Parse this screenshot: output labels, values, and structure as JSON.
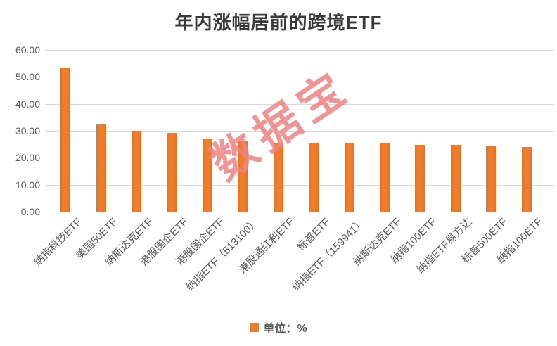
{
  "title": "年内涨幅居前的跨境ETF",
  "watermark": "数据宝",
  "legend": {
    "label": "单位：%"
  },
  "colors": {
    "bar": "#ED7D31",
    "bar_edge": "#E4721D",
    "gridline": "#D9D9D9",
    "axis_line": "#BFBFBF",
    "axis_text": "#595959",
    "title_text": "#3A3A3A",
    "watermark": "#EE8383"
  },
  "y_axis": {
    "tick_labels": [
      "60.00",
      "50.00",
      "40.00",
      "30.00",
      "20.00",
      "10.00",
      "0.00"
    ],
    "min": 0,
    "max": 60
  },
  "chart_data": {
    "type": "bar",
    "title": "年内涨幅居前的跨境ETF",
    "categories": [
      "纳指科技ETF",
      "美国50ETF",
      "纳斯达克ETF",
      "港股国企ETF",
      "港股国企ETF",
      "纳指ETF（513100）",
      "港股通红利ETF",
      "标普ETF",
      "纳指ETF（159941）",
      "纳斯达克ETF",
      "纳指100ETF",
      "纳指ETF易方达",
      "标普500ETF",
      "纳指100ETF"
    ],
    "values": [
      53.4,
      32.4,
      30.0,
      29.3,
      27.0,
      26.3,
      25.6,
      25.5,
      25.3,
      25.2,
      24.8,
      24.7,
      24.3,
      23.9
    ],
    "unit": "%",
    "xlabel": "",
    "ylabel": "",
    "ylim": [
      0,
      60
    ],
    "grid": true,
    "legend_entries": [
      "单位：%"
    ],
    "legend_position": "bottom"
  }
}
